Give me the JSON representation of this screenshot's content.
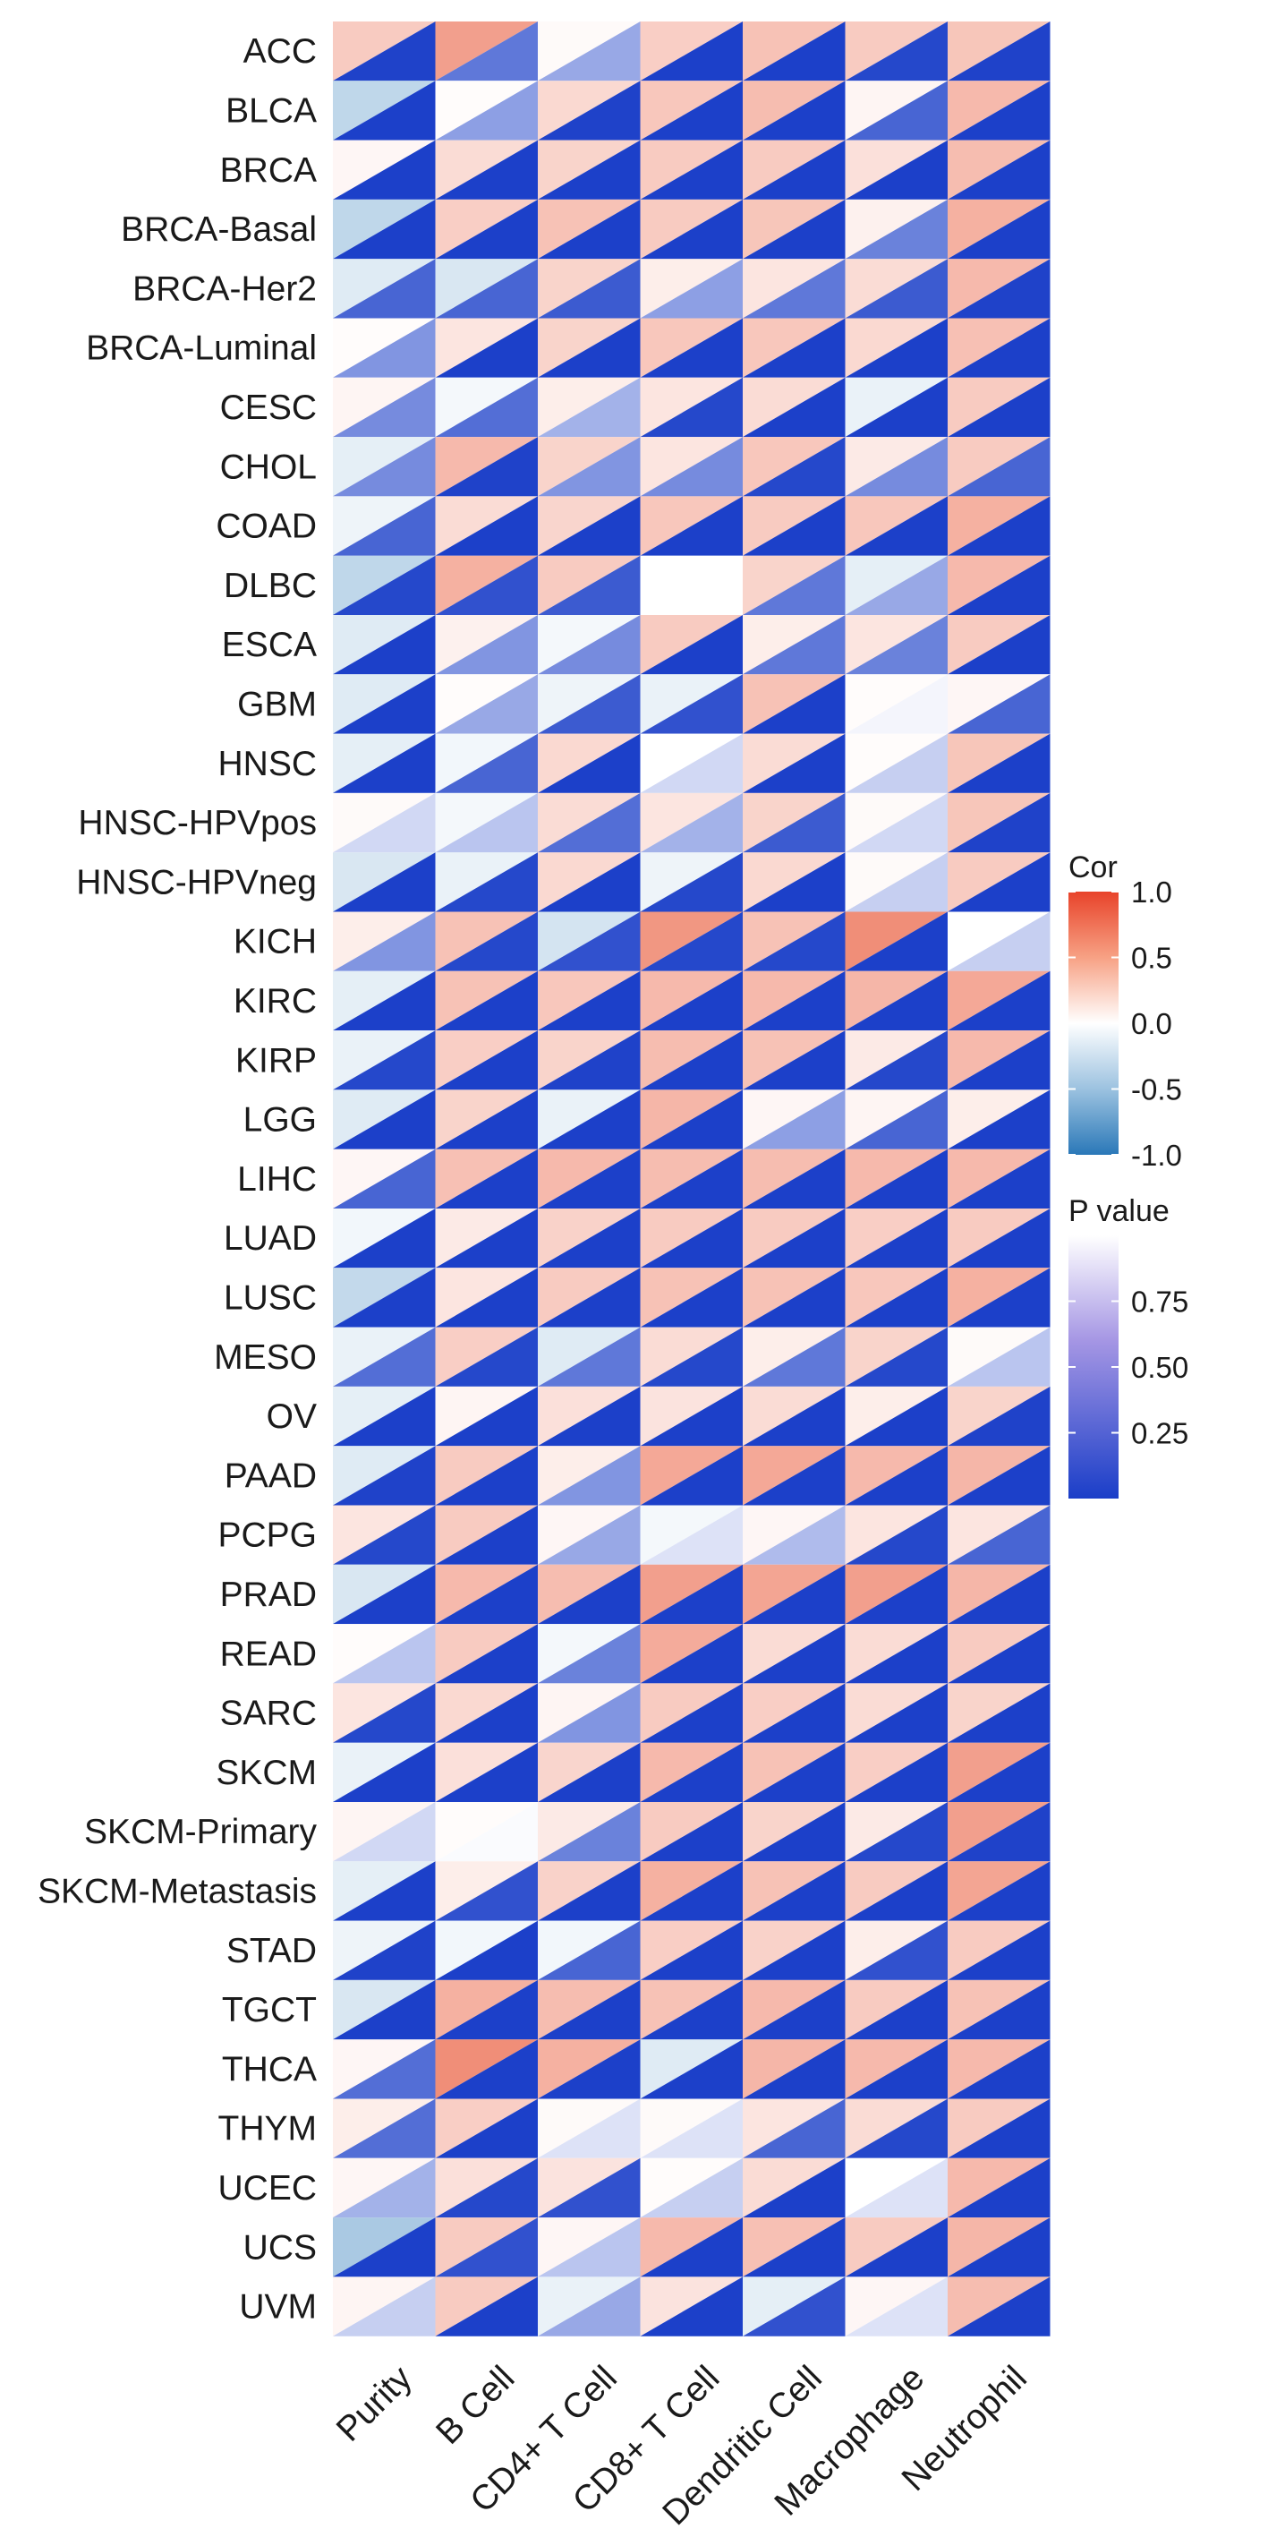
{
  "chart_data": {
    "type": "heatmap",
    "title": "",
    "xlabel": "",
    "ylabel": "",
    "columns": [
      "Purity",
      "B Cell",
      "CD4+ T Cell",
      "CD8+ T Cell",
      "Dendritic Cell",
      "Macrophage",
      "Neutrophil"
    ],
    "rows": [
      "ACC",
      "BLCA",
      "BRCA",
      "BRCA-Basal",
      "BRCA-Her2",
      "BRCA-Luminal",
      "CESC",
      "CHOL",
      "COAD",
      "DLBC",
      "ESCA",
      "GBM",
      "HNSC",
      "HNSC-HPVpos",
      "HNSC-HPVneg",
      "KICH",
      "KIRC",
      "KIRP",
      "LGG",
      "LIHC",
      "LUAD",
      "LUSC",
      "MESO",
      "OV",
      "PAAD",
      "PCPG",
      "PRAD",
      "READ",
      "SARC",
      "SKCM",
      "SKCM-Primary",
      "SKCM-Metastasis",
      "STAD",
      "TGCT",
      "THCA",
      "THYM",
      "UCEC",
      "UCS",
      "UVM"
    ],
    "cor": [
      [
        0.3,
        0.55,
        0.03,
        0.28,
        0.35,
        0.3,
        0.33
      ],
      [
        -0.3,
        0.02,
        0.22,
        0.32,
        0.38,
        0.06,
        0.4
      ],
      [
        0.05,
        0.2,
        0.25,
        0.3,
        0.3,
        0.18,
        0.38
      ],
      [
        -0.3,
        0.28,
        0.35,
        0.3,
        0.33,
        0.08,
        0.45
      ],
      [
        -0.15,
        -0.18,
        0.25,
        0.1,
        0.15,
        0.2,
        0.4
      ],
      [
        0.02,
        0.15,
        0.25,
        0.32,
        0.32,
        0.22,
        0.36
      ],
      [
        0.06,
        -0.05,
        0.1,
        0.15,
        0.2,
        -0.1,
        0.3
      ],
      [
        -0.12,
        0.4,
        0.25,
        0.15,
        0.32,
        0.12,
        0.3
      ],
      [
        -0.08,
        0.2,
        0.24,
        0.32,
        0.3,
        0.32,
        0.45
      ],
      [
        -0.3,
        0.45,
        0.3,
        0.0,
        0.25,
        -0.12,
        0.4
      ],
      [
        -0.15,
        0.08,
        -0.05,
        0.3,
        0.1,
        0.15,
        0.3
      ],
      [
        -0.15,
        0.02,
        -0.08,
        -0.1,
        0.35,
        0.02,
        0.05
      ],
      [
        -0.12,
        -0.06,
        0.22,
        0.0,
        0.2,
        0.02,
        0.33
      ],
      [
        0.03,
        -0.05,
        0.2,
        0.15,
        0.25,
        0.03,
        0.33
      ],
      [
        -0.18,
        -0.1,
        0.22,
        -0.08,
        0.22,
        0.03,
        0.3
      ],
      [
        0.1,
        0.35,
        -0.2,
        0.6,
        0.35,
        0.65,
        0.0
      ],
      [
        -0.12,
        0.35,
        0.32,
        0.4,
        0.4,
        0.42,
        0.5
      ],
      [
        -0.1,
        0.28,
        0.25,
        0.38,
        0.35,
        0.12,
        0.4
      ],
      [
        -0.15,
        0.25,
        -0.1,
        0.42,
        0.05,
        0.06,
        0.1
      ],
      [
        0.05,
        0.36,
        0.4,
        0.38,
        0.38,
        0.4,
        0.4
      ],
      [
        -0.06,
        0.12,
        0.26,
        0.3,
        0.3,
        0.28,
        0.3
      ],
      [
        -0.28,
        0.15,
        0.3,
        0.35,
        0.35,
        0.32,
        0.45
      ],
      [
        -0.1,
        0.28,
        -0.15,
        0.2,
        0.1,
        0.25,
        0.03
      ],
      [
        -0.12,
        0.06,
        0.18,
        0.16,
        0.2,
        0.1,
        0.25
      ],
      [
        -0.15,
        0.3,
        0.1,
        0.5,
        0.5,
        0.4,
        0.42
      ],
      [
        0.15,
        0.3,
        0.05,
        -0.05,
        0.05,
        0.15,
        0.15
      ],
      [
        -0.18,
        0.4,
        0.38,
        0.55,
        0.52,
        0.55,
        0.42
      ],
      [
        0.02,
        0.3,
        -0.05,
        0.48,
        0.2,
        0.2,
        0.3
      ],
      [
        0.15,
        0.22,
        0.06,
        0.3,
        0.28,
        0.2,
        0.25
      ],
      [
        -0.1,
        0.18,
        0.24,
        0.4,
        0.35,
        0.28,
        0.55
      ],
      [
        0.06,
        0.02,
        0.12,
        0.3,
        0.25,
        0.12,
        0.55
      ],
      [
        -0.12,
        0.1,
        0.26,
        0.45,
        0.35,
        0.3,
        0.52
      ],
      [
        -0.08,
        -0.06,
        -0.06,
        0.28,
        0.26,
        0.1,
        0.3
      ],
      [
        -0.18,
        0.45,
        0.38,
        0.35,
        0.4,
        0.3,
        0.35
      ],
      [
        0.05,
        0.65,
        0.45,
        -0.15,
        0.42,
        0.4,
        0.4
      ],
      [
        0.1,
        0.28,
        0.03,
        0.03,
        0.15,
        0.2,
        0.3
      ],
      [
        0.05,
        0.18,
        0.16,
        0.02,
        0.2,
        0.0,
        0.4
      ],
      [
        -0.4,
        0.3,
        0.05,
        0.4,
        0.36,
        0.3,
        0.42
      ],
      [
        0.06,
        0.3,
        -0.1,
        0.16,
        -0.12,
        0.05,
        0.38
      ]
    ],
    "p_value": [
      [
        0.02,
        0.3,
        0.55,
        0.01,
        0.01,
        0.05,
        0.02
      ],
      [
        0.01,
        0.5,
        0.02,
        0.01,
        0.01,
        0.2,
        0.01
      ],
      [
        0.01,
        0.01,
        0.01,
        0.01,
        0.01,
        0.01,
        0.01
      ],
      [
        0.01,
        0.01,
        0.01,
        0.01,
        0.01,
        0.35,
        0.01
      ],
      [
        0.2,
        0.2,
        0.15,
        0.5,
        0.3,
        0.15,
        0.02
      ],
      [
        0.45,
        0.01,
        0.01,
        0.01,
        0.01,
        0.01,
        0.01
      ],
      [
        0.4,
        0.25,
        0.6,
        0.05,
        0.01,
        0.01,
        0.01
      ],
      [
        0.4,
        0.02,
        0.45,
        0.4,
        0.05,
        0.4,
        0.2
      ],
      [
        0.2,
        0.01,
        0.01,
        0.01,
        0.01,
        0.01,
        0.01
      ],
      [
        0.05,
        0.1,
        0.15,
        1.0,
        0.3,
        0.55,
        0.01
      ],
      [
        0.01,
        0.45,
        0.4,
        0.01,
        0.3,
        0.35,
        0.01
      ],
      [
        0.01,
        0.55,
        0.15,
        0.1,
        0.01,
        0.95,
        0.2
      ],
      [
        0.01,
        0.2,
        0.01,
        0.8,
        0.01,
        0.75,
        0.01
      ],
      [
        0.8,
        0.7,
        0.25,
        0.6,
        0.15,
        0.8,
        0.02
      ],
      [
        0.01,
        0.05,
        0.01,
        0.05,
        0.01,
        0.75,
        0.01
      ],
      [
        0.45,
        0.05,
        0.1,
        0.05,
        0.05,
        0.01,
        0.75
      ],
      [
        0.01,
        0.01,
        0.01,
        0.01,
        0.01,
        0.01,
        0.01
      ],
      [
        0.05,
        0.01,
        0.02,
        0.01,
        0.01,
        0.05,
        0.01
      ],
      [
        0.01,
        0.01,
        0.01,
        0.01,
        0.5,
        0.2,
        0.01
      ],
      [
        0.2,
        0.01,
        0.01,
        0.01,
        0.01,
        0.01,
        0.01
      ],
      [
        0.01,
        0.01,
        0.01,
        0.01,
        0.01,
        0.01,
        0.01
      ],
      [
        0.01,
        0.01,
        0.01,
        0.01,
        0.01,
        0.01,
        0.01
      ],
      [
        0.25,
        0.05,
        0.3,
        0.05,
        0.3,
        0.05,
        0.7
      ],
      [
        0.01,
        0.01,
        0.01,
        0.01,
        0.01,
        0.01,
        0.02
      ],
      [
        0.02,
        0.01,
        0.45,
        0.01,
        0.01,
        0.01,
        0.01
      ],
      [
        0.05,
        0.01,
        0.55,
        0.85,
        0.65,
        0.05,
        0.2
      ],
      [
        0.01,
        0.01,
        0.01,
        0.01,
        0.01,
        0.01,
        0.01
      ],
      [
        0.7,
        0.01,
        0.35,
        0.01,
        0.01,
        0.01,
        0.01
      ],
      [
        0.05,
        0.01,
        0.45,
        0.01,
        0.01,
        0.01,
        0.01
      ],
      [
        0.01,
        0.01,
        0.01,
        0.01,
        0.01,
        0.01,
        0.01
      ],
      [
        0.8,
        0.98,
        0.35,
        0.01,
        0.01,
        0.05,
        0.02
      ],
      [
        0.01,
        0.1,
        0.01,
        0.01,
        0.01,
        0.01,
        0.01
      ],
      [
        0.02,
        0.01,
        0.2,
        0.01,
        0.01,
        0.1,
        0.01
      ],
      [
        0.01,
        0.01,
        0.01,
        0.01,
        0.01,
        0.01,
        0.01
      ],
      [
        0.25,
        0.01,
        0.01,
        0.01,
        0.01,
        0.01,
        0.01
      ],
      [
        0.25,
        0.01,
        0.85,
        0.85,
        0.2,
        0.05,
        0.01
      ],
      [
        0.6,
        0.05,
        0.1,
        0.75,
        0.01,
        0.85,
        0.01
      ],
      [
        0.01,
        0.1,
        0.7,
        0.01,
        0.01,
        0.01,
        0.01
      ],
      [
        0.75,
        0.01,
        0.55,
        0.01,
        0.1,
        0.85,
        0.01
      ]
    ],
    "legend_cor": {
      "title": "Cor",
      "ticks": [
        "1.0",
        "0.5",
        "0.0",
        "-0.5",
        "-1.0"
      ],
      "range": [
        -1,
        1
      ],
      "colors": {
        "high": "#e8512f",
        "mid": "#ffffff",
        "low": "#2a78b8"
      }
    },
    "legend_p": {
      "title": "P value",
      "ticks": [
        "0.75",
        "0.50",
        "0.25"
      ],
      "tick_values": [
        0.75,
        0.5,
        0.25
      ],
      "range": [
        0,
        1
      ],
      "colors": {
        "low": "#1a3ec8",
        "high": "#ffffff"
      }
    }
  }
}
